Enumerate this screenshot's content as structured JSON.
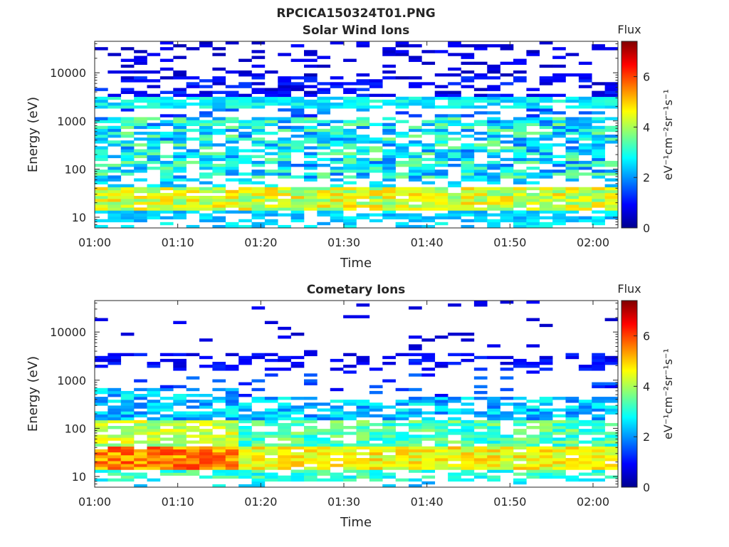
{
  "figure": {
    "title": "RPCICA150324T01.PNG"
  },
  "chart_data": [
    {
      "type": "heatmap",
      "title": "Solar Wind Ions",
      "xlabel": "Time",
      "ylabel": "Energy (eV)",
      "y_scale": "log",
      "xlim": [
        "01:00",
        "02:03"
      ],
      "ylim": [
        6,
        45000
      ],
      "x_ticks": [
        "01:00",
        "01:10",
        "01:20",
        "01:30",
        "01:40",
        "01:50",
        "02:00"
      ],
      "y_ticks": [
        "10",
        "100",
        "1000",
        "10000"
      ],
      "z_label": "Flux",
      "z_units": "eV⁻¹cm⁻²sr⁻¹s⁻¹",
      "z_ticks": [
        "0",
        "2",
        "4",
        "6"
      ],
      "zlim": [
        0,
        7.4
      ],
      "colormap": "jet",
      "description_of_data": "Flux spectrogram: bands near 20-30 eV (flux 4-5), 100-1000 eV (flux 2-3.5), 2000-3000 eV (flux 2.5-3), sparse high-energy lines above 5000 eV (flux ~0.5-1)"
    },
    {
      "type": "heatmap",
      "title": "Cometary Ions",
      "xlabel": "Time",
      "ylabel": "Energy (eV)",
      "y_scale": "log",
      "xlim": [
        "01:00",
        "02:03"
      ],
      "ylim": [
        6,
        45000
      ],
      "x_ticks": [
        "01:00",
        "01:10",
        "01:20",
        "01:30",
        "01:40",
        "01:50",
        "02:00"
      ],
      "y_ticks": [
        "10",
        "100",
        "1000",
        "10000"
      ],
      "z_label": "Flux",
      "z_units": "eV⁻¹cm⁻²sr⁻¹s⁻¹",
      "z_ticks": [
        "0",
        "2",
        "4",
        "6"
      ],
      "zlim": [
        0,
        7.4
      ],
      "colormap": "jet",
      "description_of_data": "Flux spectrogram: strong band 15-50 eV (flux 4.5-6) before 01:18, 15-400 eV (flux 2.5-4.5) after, band near 2500 eV (flux ~1)"
    }
  ]
}
